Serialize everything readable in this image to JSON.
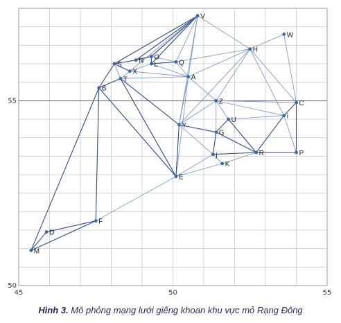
{
  "chart_data": {
    "type": "network",
    "xlim": [
      45,
      55
    ],
    "ylim": [
      50,
      57.5
    ],
    "x_ticks": [
      45,
      50,
      55
    ],
    "y_ticks": [
      50,
      55
    ],
    "x_tick_labels": [
      "45",
      "50",
      "55"
    ],
    "y_tick_labels": [
      "50",
      "55"
    ],
    "reference_line_y": 55,
    "grid": true,
    "colors": {
      "node": "#3a66b0",
      "edge_dark": "#2b4a8c",
      "edge_light": "#6f92c8",
      "grid": "#c9c9c9",
      "caption": "#1e2a5a"
    },
    "nodes": [
      {
        "id": "V",
        "x": 50.8,
        "y": 57.3
      },
      {
        "id": "W",
        "x": 53.6,
        "y": 56.8
      },
      {
        "id": "H",
        "x": 52.5,
        "y": 56.4
      },
      {
        "id": "O",
        "x": 49.3,
        "y": 56.2
      },
      {
        "id": "N",
        "x": 48.8,
        "y": 56.1
      },
      {
        "id": "S",
        "x": 48.1,
        "y": 56.0
      },
      {
        "id": "Q",
        "x": 50.1,
        "y": 56.05
      },
      {
        "id": "L",
        "x": 49.3,
        "y": 56.0
      },
      {
        "id": "X",
        "x": 48.6,
        "y": 55.8
      },
      {
        "id": "T",
        "x": 48.3,
        "y": 55.6
      },
      {
        "id": "A",
        "x": 50.5,
        "y": 55.65
      },
      {
        "id": "B",
        "x": 47.6,
        "y": 55.35
      },
      {
        "id": "Z",
        "x": 51.4,
        "y": 55.0
      },
      {
        "id": "C",
        "x": 54.0,
        "y": 54.95
      },
      {
        "id": "i",
        "x": 53.6,
        "y": 54.6
      },
      {
        "id": "U",
        "x": 51.8,
        "y": 54.5
      },
      {
        "id": "Y",
        "x": 50.2,
        "y": 54.35
      },
      {
        "id": "G",
        "x": 51.4,
        "y": 54.15
      },
      {
        "id": "j",
        "x": 51.3,
        "y": 53.55
      },
      {
        "id": "R",
        "x": 52.7,
        "y": 53.6
      },
      {
        "id": "P",
        "x": 54.0,
        "y": 53.6
      },
      {
        "id": "K",
        "x": 51.6,
        "y": 53.3
      },
      {
        "id": "E",
        "x": 50.1,
        "y": 52.95
      },
      {
        "id": "F",
        "x": 47.5,
        "y": 51.75
      },
      {
        "id": "D",
        "x": 45.9,
        "y": 51.45
      },
      {
        "id": "M",
        "x": 45.4,
        "y": 50.95
      }
    ],
    "edges": [
      [
        "V",
        "S"
      ],
      [
        "V",
        "N"
      ],
      [
        "V",
        "O"
      ],
      [
        "V",
        "L"
      ],
      [
        "V",
        "Q"
      ],
      [
        "V",
        "X"
      ],
      [
        "V",
        "A"
      ],
      [
        "V",
        "Y"
      ],
      [
        "V",
        "H"
      ],
      [
        "W",
        "H"
      ],
      [
        "W",
        "C"
      ],
      [
        "H",
        "Q"
      ],
      [
        "H",
        "A"
      ],
      [
        "H",
        "Z"
      ],
      [
        "H",
        "C"
      ],
      [
        "H",
        "i"
      ],
      [
        "H",
        "Y"
      ],
      [
        "S",
        "N"
      ],
      [
        "N",
        "O"
      ],
      [
        "O",
        "Q"
      ],
      [
        "O",
        "L"
      ],
      [
        "L",
        "Q"
      ],
      [
        "L",
        "X"
      ],
      [
        "L",
        "A"
      ],
      [
        "S",
        "X"
      ],
      [
        "X",
        "A"
      ],
      [
        "A",
        "Q"
      ],
      [
        "S",
        "T"
      ],
      [
        "S",
        "B"
      ],
      [
        "T",
        "X"
      ],
      [
        "T",
        "A"
      ],
      [
        "T",
        "Y"
      ],
      [
        "T",
        "E"
      ],
      [
        "T",
        "B"
      ],
      [
        "A",
        "Z"
      ],
      [
        "A",
        "Y"
      ],
      [
        "A",
        "E"
      ],
      [
        "B",
        "E"
      ],
      [
        "B",
        "F"
      ],
      [
        "B",
        "M"
      ],
      [
        "Z",
        "C"
      ],
      [
        "Z",
        "i"
      ],
      [
        "Z",
        "Y"
      ],
      [
        "Z",
        "G"
      ],
      [
        "Z",
        "U"
      ],
      [
        "C",
        "i"
      ],
      [
        "C",
        "P"
      ],
      [
        "i",
        "P"
      ],
      [
        "i",
        "R"
      ],
      [
        "U",
        "i"
      ],
      [
        "U",
        "G"
      ],
      [
        "U",
        "R"
      ],
      [
        "Y",
        "G"
      ],
      [
        "Y",
        "E"
      ],
      [
        "Y",
        "j"
      ],
      [
        "G",
        "R"
      ],
      [
        "G",
        "j"
      ],
      [
        "j",
        "K"
      ],
      [
        "j",
        "R"
      ],
      [
        "K",
        "R"
      ],
      [
        "j",
        "E"
      ],
      [
        "K",
        "E"
      ],
      [
        "R",
        "P"
      ],
      [
        "E",
        "F"
      ],
      [
        "F",
        "D"
      ],
      [
        "F",
        "M"
      ],
      [
        "D",
        "M"
      ]
    ],
    "dark_edges": [
      [
        "V",
        "S"
      ],
      [
        "V",
        "N"
      ],
      [
        "V",
        "O"
      ],
      [
        "V",
        "L"
      ],
      [
        "S",
        "N"
      ],
      [
        "N",
        "O"
      ],
      [
        "O",
        "L"
      ],
      [
        "L",
        "Q"
      ],
      [
        "S",
        "X"
      ],
      [
        "T",
        "Y"
      ],
      [
        "T",
        "E"
      ],
      [
        "T",
        "B"
      ],
      [
        "S",
        "B"
      ],
      [
        "B",
        "E"
      ],
      [
        "B",
        "F"
      ],
      [
        "B",
        "M"
      ],
      [
        "Y",
        "G"
      ],
      [
        "Y",
        "E"
      ],
      [
        "G",
        "R"
      ],
      [
        "G",
        "j"
      ],
      [
        "j",
        "R"
      ],
      [
        "U",
        "G"
      ],
      [
        "U",
        "R"
      ],
      [
        "i",
        "R"
      ],
      [
        "C",
        "i"
      ],
      [
        "C",
        "P"
      ],
      [
        "R",
        "P"
      ],
      [
        "F",
        "D"
      ],
      [
        "F",
        "M"
      ],
      [
        "D",
        "M"
      ]
    ]
  },
  "caption": {
    "label": "Hình 3.",
    "text": "Mô phỏng mạng lưới giếng khoan khu vực mỏ Rạng Đông"
  }
}
